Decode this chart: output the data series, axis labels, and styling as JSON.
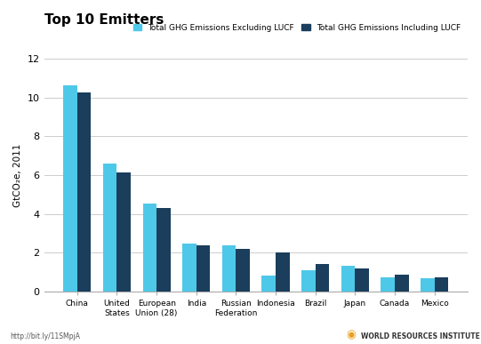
{
  "title": "Top 10 Emitters",
  "ylabel": "GtCO₂e, 2011",
  "categories": [
    "China",
    "United\nStates",
    "European\nUnion (28)",
    "India",
    "Russian\nFederation",
    "Indonesia",
    "Brazil",
    "Japan",
    "Canada",
    "Mexico"
  ],
  "excl_lucf": [
    10.6,
    6.6,
    4.55,
    2.48,
    2.4,
    0.82,
    1.1,
    1.32,
    0.72,
    0.71
  ],
  "incl_lucf": [
    10.25,
    6.15,
    4.3,
    2.38,
    2.22,
    2.04,
    1.44,
    1.2,
    0.87,
    0.73
  ],
  "color_excl": "#4EC8E8",
  "color_incl": "#1A3E5C",
  "legend_excl": "Total GHG Emissions Excluding LUCF",
  "legend_incl": "Total GHG Emissions Including LUCF",
  "ylim": [
    0,
    12
  ],
  "yticks": [
    0,
    2,
    4,
    6,
    8,
    10,
    12
  ],
  "background_color": "#ffffff",
  "footer_left": "http://bit.ly/11SMpjA",
  "footer_right": "WORLD RESOURCES INSTITUTE"
}
